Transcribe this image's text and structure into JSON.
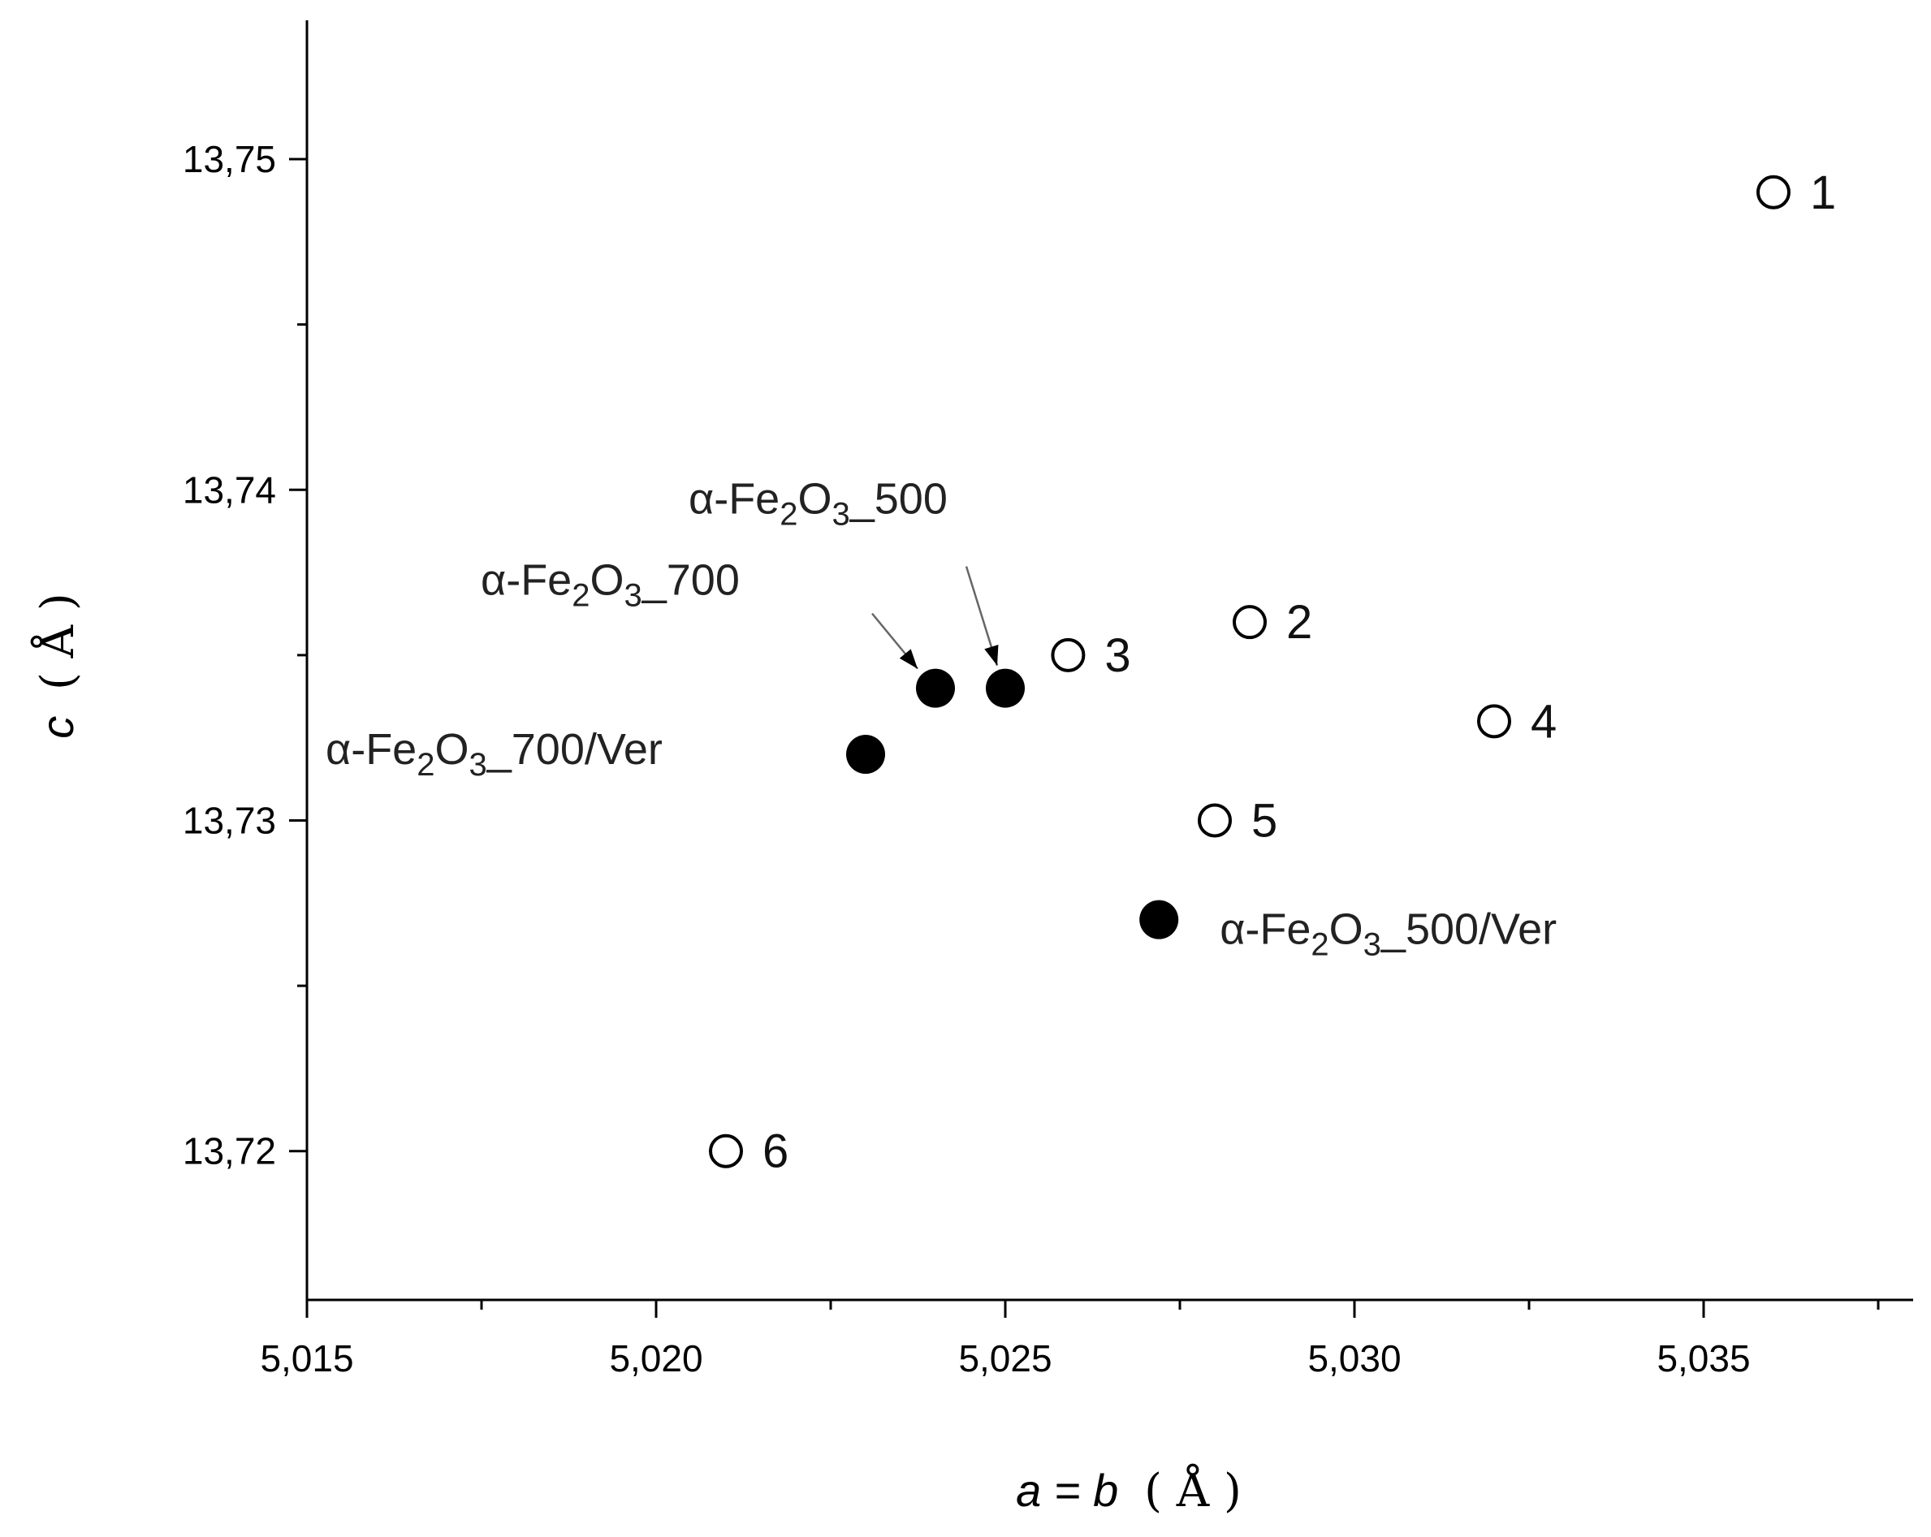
{
  "chart_data": {
    "type": "scatter",
    "xlabel": {
      "var": "a = b",
      "unit": "( Å )"
    },
    "ylabel": {
      "var": "c",
      "unit": "( Å )"
    },
    "xlim": [
      5.015,
      5.038
    ],
    "ylim": [
      13.7155,
      13.7542
    ],
    "x_ticks": [
      5.015,
      5.02,
      5.025,
      5.03,
      5.035
    ],
    "x_tick_labels": [
      "5,015",
      "5,020",
      "5,025",
      "5,030",
      "5,035"
    ],
    "y_ticks": [
      13.72,
      13.73,
      13.74,
      13.75
    ],
    "y_tick_labels": [
      "13,72",
      "13,73",
      "13,74",
      "13,75"
    ],
    "grid": false,
    "series": [
      {
        "marker": "open-circle",
        "points": [
          {
            "x": 5.036,
            "y": 13.749,
            "label": "1"
          },
          {
            "x": 5.0285,
            "y": 13.736,
            "label": "2"
          },
          {
            "x": 5.0259,
            "y": 13.735,
            "label": "3"
          },
          {
            "x": 5.032,
            "y": 13.733,
            "label": "4"
          },
          {
            "x": 5.028,
            "y": 13.73,
            "label": "5"
          },
          {
            "x": 5.021,
            "y": 13.72,
            "label": "6"
          }
        ]
      },
      {
        "marker": "filled-circle",
        "points": [
          {
            "x": 5.025,
            "y": 13.734,
            "label": {
              "pre": "α-Fe",
              "sub1": "2",
              "mid": "O",
              "sub2": "3",
              "post": "_500"
            }
          },
          {
            "x": 5.024,
            "y": 13.734,
            "label": {
              "pre": "α-Fe",
              "sub1": "2",
              "mid": "O",
              "sub2": "3",
              "post": "_700"
            }
          },
          {
            "x": 5.023,
            "y": 13.732,
            "label": {
              "pre": "α-Fe",
              "sub1": "2",
              "mid": "O",
              "sub2": "3",
              "post": "_700/Ver"
            }
          },
          {
            "x": 5.0272,
            "y": 13.727,
            "label": {
              "pre": "α-Fe",
              "sub1": "2",
              "mid": "O",
              "sub2": "3",
              "post": "_500/Ver"
            }
          }
        ]
      }
    ]
  }
}
